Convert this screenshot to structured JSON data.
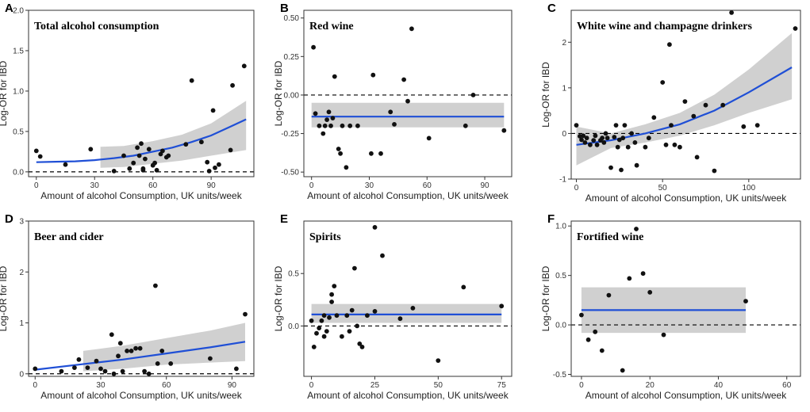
{
  "figure": {
    "x_label": "Amount of alcohol Consumption, UK units/week",
    "y_label": "Log-OR for IBD"
  },
  "colors": {
    "fit_line": "#1f4fd6",
    "ribbon": "#c8c8c8",
    "point": "#111111",
    "reference_line": "#000000"
  },
  "chart_data": [
    {
      "letter": "A",
      "title": "Total alcohol consumption",
      "type": "scatter",
      "fit": "curve",
      "xlim": [
        -4,
        112
      ],
      "ylim": [
        -0.06,
        2.0
      ],
      "xticks": [
        0,
        30,
        60,
        90
      ],
      "xtick_labels": [
        "0",
        "30",
        "60",
        "90"
      ],
      "yticks": [
        0,
        0.5,
        1.0,
        1.5,
        2.0
      ],
      "ytick_labels": [
        "0.0",
        "0.5",
        "1.0",
        "1.5",
        "2.0"
      ],
      "fit_x": [
        0,
        10,
        20,
        30,
        40,
        50,
        60,
        70,
        80,
        90,
        100,
        108
      ],
      "fit_y": [
        0.12,
        0.125,
        0.13,
        0.145,
        0.17,
        0.2,
        0.25,
        0.3,
        0.37,
        0.45,
        0.56,
        0.65
      ],
      "band_x": [
        33,
        45,
        60,
        75,
        90,
        108
      ],
      "band_lo": [
        0.05,
        0.06,
        0.1,
        0.14,
        0.2,
        0.27
      ],
      "band_hi": [
        0.31,
        0.32,
        0.38,
        0.46,
        0.6,
        0.88
      ],
      "x": [
        0,
        2,
        15,
        28,
        40,
        45,
        48,
        50,
        52,
        53,
        54,
        55,
        55,
        56,
        58,
        60,
        61,
        62,
        64,
        65,
        67,
        68,
        77,
        80,
        85,
        88,
        89,
        91,
        92,
        94,
        100,
        101,
        107
      ],
      "y": [
        0.26,
        0.19,
        0.09,
        0.28,
        0.01,
        0.2,
        0.04,
        0.11,
        0.3,
        0.2,
        0.35,
        0.04,
        0.02,
        0.16,
        0.28,
        0.08,
        0.11,
        0.02,
        0.22,
        0.26,
        0.18,
        0.2,
        0.34,
        1.13,
        0.37,
        0.12,
        0.01,
        0.76,
        0.05,
        0.09,
        0.27,
        1.07,
        1.31
      ]
    },
    {
      "letter": "B",
      "title": "Red wine",
      "type": "scatter",
      "fit": "flat",
      "xlim": [
        -4,
        104
      ],
      "ylim": [
        -0.53,
        0.55
      ],
      "xticks": [
        0,
        30,
        60,
        90
      ],
      "xtick_labels": [
        "0",
        "30",
        "60",
        "90"
      ],
      "yticks": [
        -0.5,
        -0.25,
        0,
        0.25,
        0.5
      ],
      "ytick_labels": [
        "-0.50",
        "-0.25",
        "0.00",
        "0.25",
        "0.50"
      ],
      "fit_x": [
        0,
        100
      ],
      "fit_y": [
        -0.14,
        -0.14
      ],
      "band_x": [
        0,
        100
      ],
      "band_lo": [
        -0.21,
        -0.21
      ],
      "band_hi": [
        -0.05,
        -0.05
      ],
      "x": [
        1,
        2,
        4,
        6,
        7,
        8,
        9,
        10,
        11,
        12,
        14,
        15,
        16,
        18,
        20,
        24,
        31,
        32,
        36,
        41,
        43,
        48,
        50,
        52,
        61,
        80,
        84,
        100
      ],
      "y": [
        0.31,
        -0.12,
        -0.2,
        -0.25,
        -0.2,
        -0.16,
        -0.11,
        -0.2,
        -0.15,
        0.12,
        -0.35,
        -0.38,
        -0.2,
        -0.47,
        -0.2,
        -0.2,
        -0.38,
        0.13,
        -0.38,
        -0.11,
        -0.19,
        0.1,
        -0.04,
        0.43,
        -0.28,
        -0.2,
        0.0,
        -0.23
      ]
    },
    {
      "letter": "C",
      "title": "White wine and champagne drinkers",
      "type": "scatter",
      "fit": "curve",
      "xlim": [
        -3,
        130
      ],
      "ylim": [
        -1.0,
        2.7
      ],
      "xticks": [
        0,
        50,
        100
      ],
      "xtick_labels": [
        "0",
        "50",
        "100"
      ],
      "yticks": [
        -1,
        0,
        1,
        2
      ],
      "ytick_labels": [
        "-1",
        "0",
        "1",
        "2"
      ],
      "fit_x": [
        0,
        20,
        40,
        60,
        80,
        100,
        125
      ],
      "fit_y": [
        -0.25,
        -0.15,
        0.0,
        0.2,
        0.5,
        0.9,
        1.45
      ],
      "band_x": [
        0,
        20,
        40,
        60,
        80,
        100,
        125
      ],
      "band_lo": [
        -0.7,
        -0.32,
        -0.2,
        -0.05,
        0.18,
        0.45,
        0.75
      ],
      "band_hi": [
        0.15,
        0.0,
        0.2,
        0.45,
        0.85,
        1.4,
        2.2
      ],
      "x": [
        0,
        2,
        3,
        4,
        5,
        6,
        8,
        10,
        11,
        12,
        14,
        15,
        16,
        17,
        18,
        20,
        22,
        23,
        24,
        25,
        26,
        27,
        28,
        30,
        32,
        34,
        35,
        40,
        42,
        45,
        50,
        52,
        54,
        55,
        57,
        60,
        63,
        68,
        70,
        75,
        80,
        85,
        90,
        97,
        105,
        127
      ],
      "y": [
        0.18,
        -0.06,
        -0.14,
        -0.05,
        -0.2,
        -0.1,
        -0.25,
        -0.15,
        -0.05,
        -0.25,
        -0.15,
        -0.1,
        -0.2,
        0.0,
        -0.1,
        -0.75,
        -0.08,
        0.18,
        -0.3,
        -0.14,
        -0.8,
        -0.1,
        0.18,
        -0.3,
        0.0,
        -0.2,
        -0.7,
        -0.3,
        -0.1,
        0.35,
        1.12,
        -0.25,
        1.95,
        0.18,
        -0.25,
        -0.3,
        0.7,
        0.38,
        -0.52,
        0.62,
        -0.82,
        0.62,
        2.65,
        0.15,
        0.18,
        2.3
      ]
    },
    {
      "letter": "D",
      "title": "Beer and cider",
      "type": "scatter",
      "fit": "curve",
      "xlim": [
        -3,
        100
      ],
      "ylim": [
        -0.05,
        3.0
      ],
      "xticks": [
        0,
        30,
        60,
        90
      ],
      "xtick_labels": [
        "0",
        "30",
        "60",
        "90"
      ],
      "yticks": [
        0,
        1,
        2,
        3
      ],
      "ytick_labels": [
        "0",
        "1",
        "2",
        "3"
      ],
      "fit_x": [
        0,
        20,
        40,
        60,
        80,
        96
      ],
      "fit_y": [
        0.08,
        0.18,
        0.28,
        0.4,
        0.52,
        0.63
      ],
      "band_x": [
        22,
        40,
        60,
        80,
        96
      ],
      "band_lo": [
        0.05,
        0.1,
        0.18,
        0.22,
        0.25
      ],
      "band_hi": [
        0.45,
        0.55,
        0.7,
        0.85,
        1.0
      ],
      "x": [
        0,
        12,
        18,
        20,
        24,
        28,
        30,
        32,
        35,
        36,
        38,
        39,
        40,
        42,
        44,
        46,
        48,
        50,
        52,
        55,
        56,
        58,
        62,
        80,
        92,
        96
      ],
      "y": [
        0.1,
        0.05,
        0.12,
        0.28,
        0.12,
        0.25,
        0.1,
        0.05,
        0.77,
        0.0,
        0.35,
        0.6,
        0.05,
        0.45,
        0.45,
        0.5,
        0.5,
        0.05,
        0.0,
        1.73,
        0.2,
        0.45,
        0.2,
        0.3,
        0.1,
        1.17
      ]
    },
    {
      "letter": "E",
      "title": "Spirits",
      "type": "scatter",
      "fit": "flat",
      "xlim": [
        -3,
        79
      ],
      "ylim": [
        -0.48,
        1.0
      ],
      "xticks": [
        0,
        25,
        50,
        75
      ],
      "xtick_labels": [
        "0",
        "25",
        "50",
        "75"
      ],
      "yticks": [
        0,
        0.5
      ],
      "ytick_labels": [
        "0.0",
        "0.5"
      ],
      "fit_x": [
        0,
        75
      ],
      "fit_y": [
        0.11,
        0.11
      ],
      "band_x": [
        0,
        75
      ],
      "band_lo": [
        0.03,
        0.03
      ],
      "band_hi": [
        0.21,
        0.21
      ],
      "x": [
        0,
        1,
        2,
        3,
        4,
        5,
        5,
        6,
        7,
        8,
        8,
        9,
        10,
        12,
        14,
        15,
        16,
        17,
        18,
        19,
        20,
        22,
        25,
        25,
        28,
        35,
        40,
        50,
        60,
        75
      ],
      "y": [
        0.05,
        -0.2,
        -0.07,
        -0.02,
        0.05,
        -0.1,
        0.1,
        -0.05,
        0.08,
        0.23,
        0.3,
        0.38,
        0.1,
        -0.1,
        0.1,
        -0.05,
        0.15,
        0.55,
        0.0,
        -0.17,
        -0.2,
        0.1,
        0.94,
        0.14,
        0.67,
        0.07,
        0.17,
        -0.33,
        0.37,
        0.19
      ]
    },
    {
      "letter": "F",
      "title": "Fortified wine",
      "type": "scatter",
      "fit": "flat",
      "xlim": [
        -3,
        64
      ],
      "ylim": [
        -0.52,
        1.05
      ],
      "xticks": [
        0,
        20,
        40,
        60
      ],
      "xtick_labels": [
        "0",
        "20",
        "40",
        "60"
      ],
      "yticks": [
        -0.5,
        0,
        0.5,
        1.0
      ],
      "ytick_labels": [
        "-0.5",
        "0.0",
        "0.5",
        "1.0"
      ],
      "fit_x": [
        0,
        48
      ],
      "fit_y": [
        0.15,
        0.15
      ],
      "band_x": [
        0,
        48
      ],
      "band_lo": [
        -0.08,
        -0.08
      ],
      "band_hi": [
        0.38,
        0.38
      ],
      "x": [
        0,
        2,
        4,
        6,
        8,
        12,
        14,
        16,
        18,
        20,
        24,
        48
      ],
      "y": [
        0.1,
        -0.15,
        -0.07,
        -0.26,
        0.3,
        -0.46,
        0.47,
        0.97,
        0.52,
        0.33,
        -0.1,
        0.24
      ]
    }
  ]
}
